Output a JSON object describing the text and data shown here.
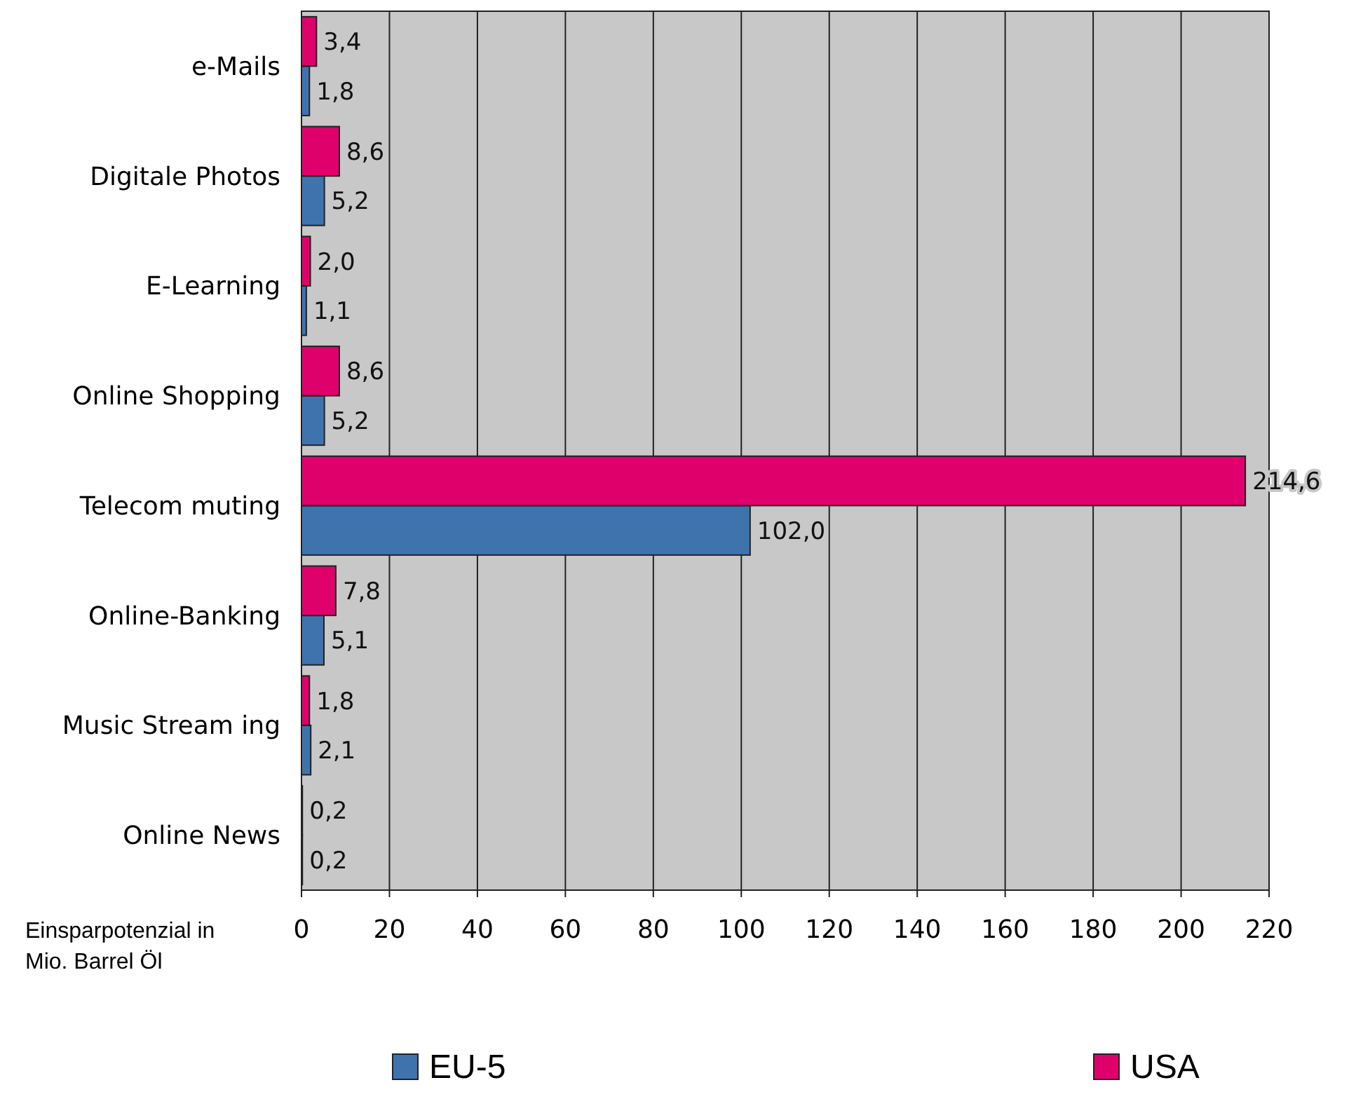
{
  "chart_data": {
    "type": "bar",
    "orientation": "horizontal",
    "xlabel": "Einsparpotenzial in\nMio. Barrel Öl",
    "categories": [
      "e-Mails",
      "Digitale Photos",
      "E-Learning",
      "Online Shopping",
      "Telecom muting",
      "Online-Banking",
      "Music Stream ing",
      "Online News"
    ],
    "series": [
      {
        "name": "EU-5",
        "color": "#3f73ad",
        "values": [
          1.8,
          5.2,
          1.1,
          5.2,
          102.0,
          5.1,
          2.1,
          0.2
        ],
        "value_labels": [
          "1,8",
          "5,2",
          "1,1",
          "5,2",
          "102,0",
          "5,1",
          "2,1",
          "0,2"
        ]
      },
      {
        "name": "USA",
        "color": "#e0006c",
        "values": [
          3.4,
          8.6,
          2.0,
          8.6,
          214.6,
          7.8,
          1.8,
          0.2
        ],
        "value_labels": [
          "3,4",
          "8,6",
          "2,0",
          "8,6",
          "214,6",
          "7,8",
          "1,8",
          "0,2"
        ]
      }
    ],
    "xlim": [
      0,
      220
    ],
    "xticks": [
      0,
      20,
      40,
      60,
      80,
      100,
      120,
      140,
      160,
      180,
      200,
      220
    ],
    "grid": "x",
    "legend": "bottom"
  }
}
